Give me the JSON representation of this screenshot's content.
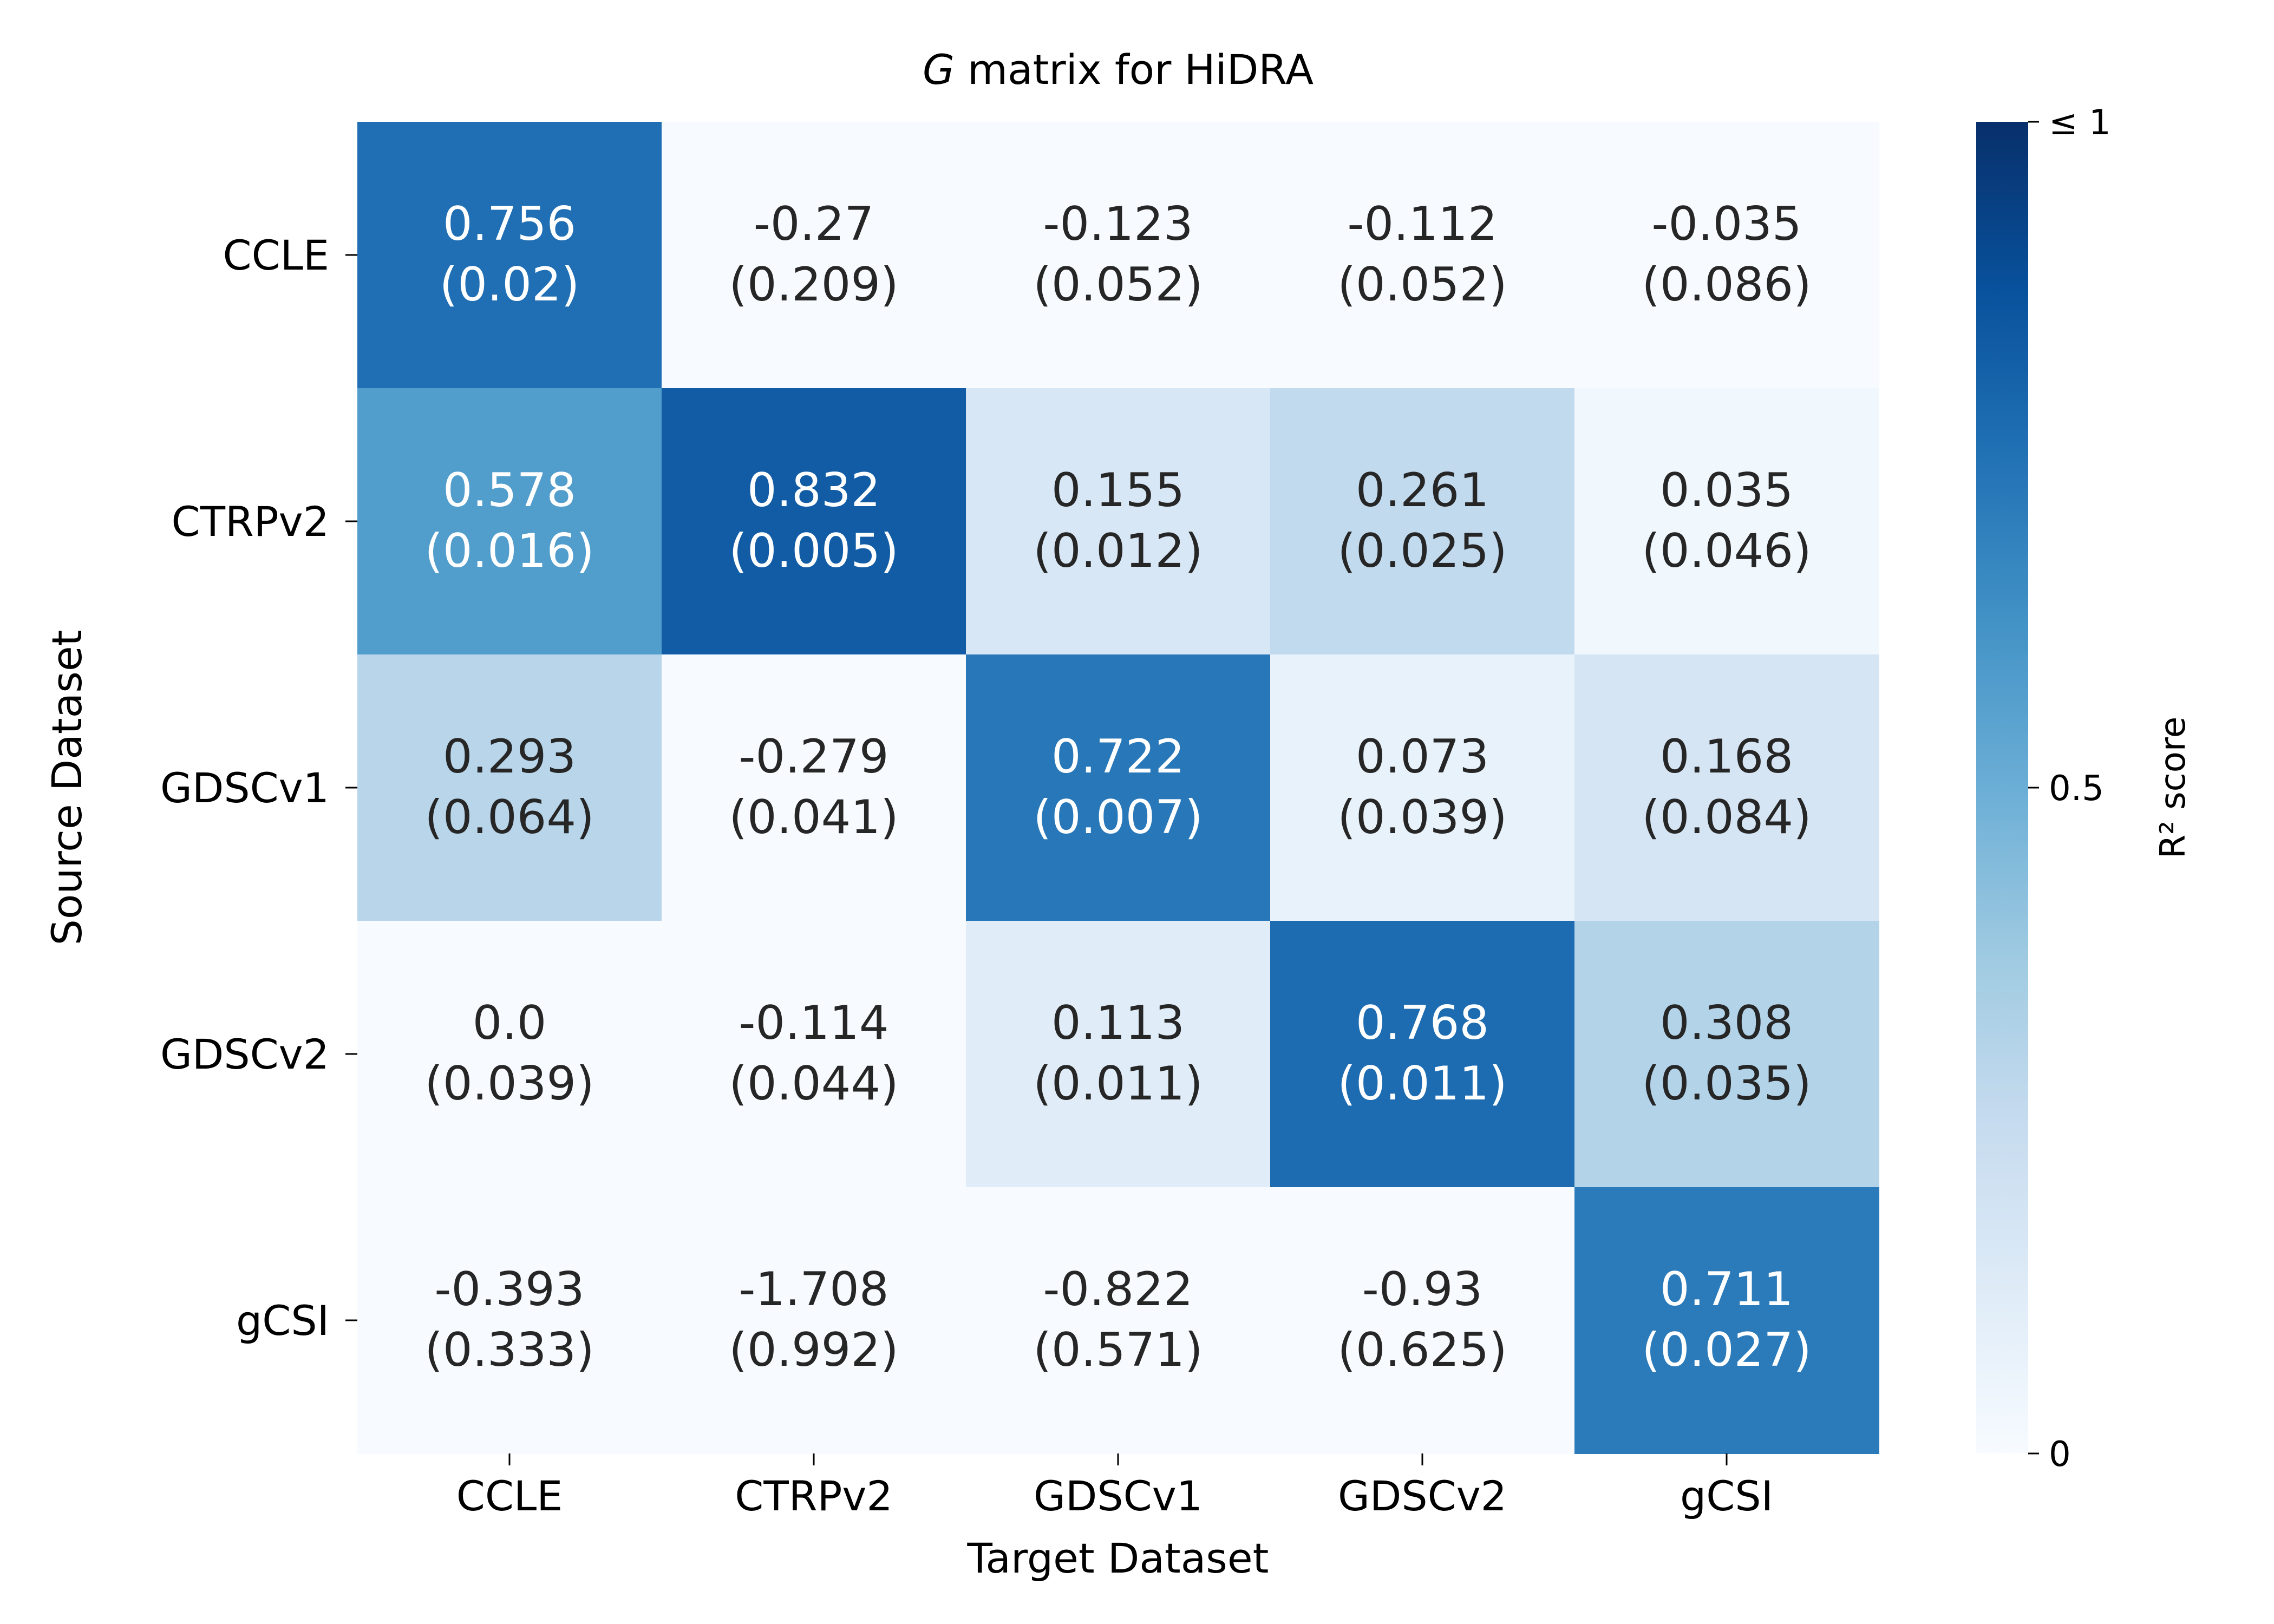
{
  "chart_data": {
    "type": "heatmap",
    "title": {
      "italic": "G",
      "rest": " matrix for HiDRA"
    },
    "xlabel": "Target Dataset",
    "ylabel": "Source Dataset",
    "x_categories": [
      "CCLE",
      "CTRPv2",
      "GDSCv1",
      "GDSCv2",
      "gCSI"
    ],
    "y_categories": [
      "CCLE",
      "CTRPv2",
      "GDSCv1",
      "GDSCv2",
      "gCSI"
    ],
    "values": [
      [
        0.756,
        -0.27,
        -0.123,
        -0.112,
        -0.035
      ],
      [
        0.578,
        0.832,
        0.155,
        0.261,
        0.035
      ],
      [
        0.293,
        -0.279,
        0.722,
        0.073,
        0.168
      ],
      [
        0.0,
        -0.114,
        0.113,
        0.768,
        0.308
      ],
      [
        -0.393,
        -1.708,
        -0.822,
        -0.93,
        0.711
      ]
    ],
    "value_labels": [
      [
        "0.756",
        "-0.27",
        "-0.123",
        "-0.112",
        "-0.035"
      ],
      [
        "0.578",
        "0.832",
        "0.155",
        "0.261",
        "0.035"
      ],
      [
        "0.293",
        "-0.279",
        "0.722",
        "0.073",
        "0.168"
      ],
      [
        "0.0",
        "-0.114",
        "0.113",
        "0.768",
        "0.308"
      ],
      [
        "-0.393",
        "-1.708",
        "-0.822",
        "-0.93",
        "0.711"
      ]
    ],
    "std_labels": [
      [
        "(0.02)",
        "(0.209)",
        "(0.052)",
        "(0.052)",
        "(0.086)"
      ],
      [
        "(0.016)",
        "(0.005)",
        "(0.012)",
        "(0.025)",
        "(0.046)"
      ],
      [
        "(0.064)",
        "(0.041)",
        "(0.007)",
        "(0.039)",
        "(0.084)"
      ],
      [
        "(0.039)",
        "(0.044)",
        "(0.011)",
        "(0.011)",
        "(0.035)"
      ],
      [
        "(0.333)",
        "(0.992)",
        "(0.571)",
        "(0.625)",
        "(0.027)"
      ]
    ],
    "colorscale": "Blues",
    "vmin": 0,
    "vmax": 1,
    "colorbar": {
      "label": "R² score",
      "ticks": [
        0,
        0.5,
        1
      ],
      "tick_labels": [
        "0",
        "0.5",
        "≤ 1"
      ]
    },
    "text_color_dark": "#262626",
    "text_color_light": "#ffffff"
  }
}
